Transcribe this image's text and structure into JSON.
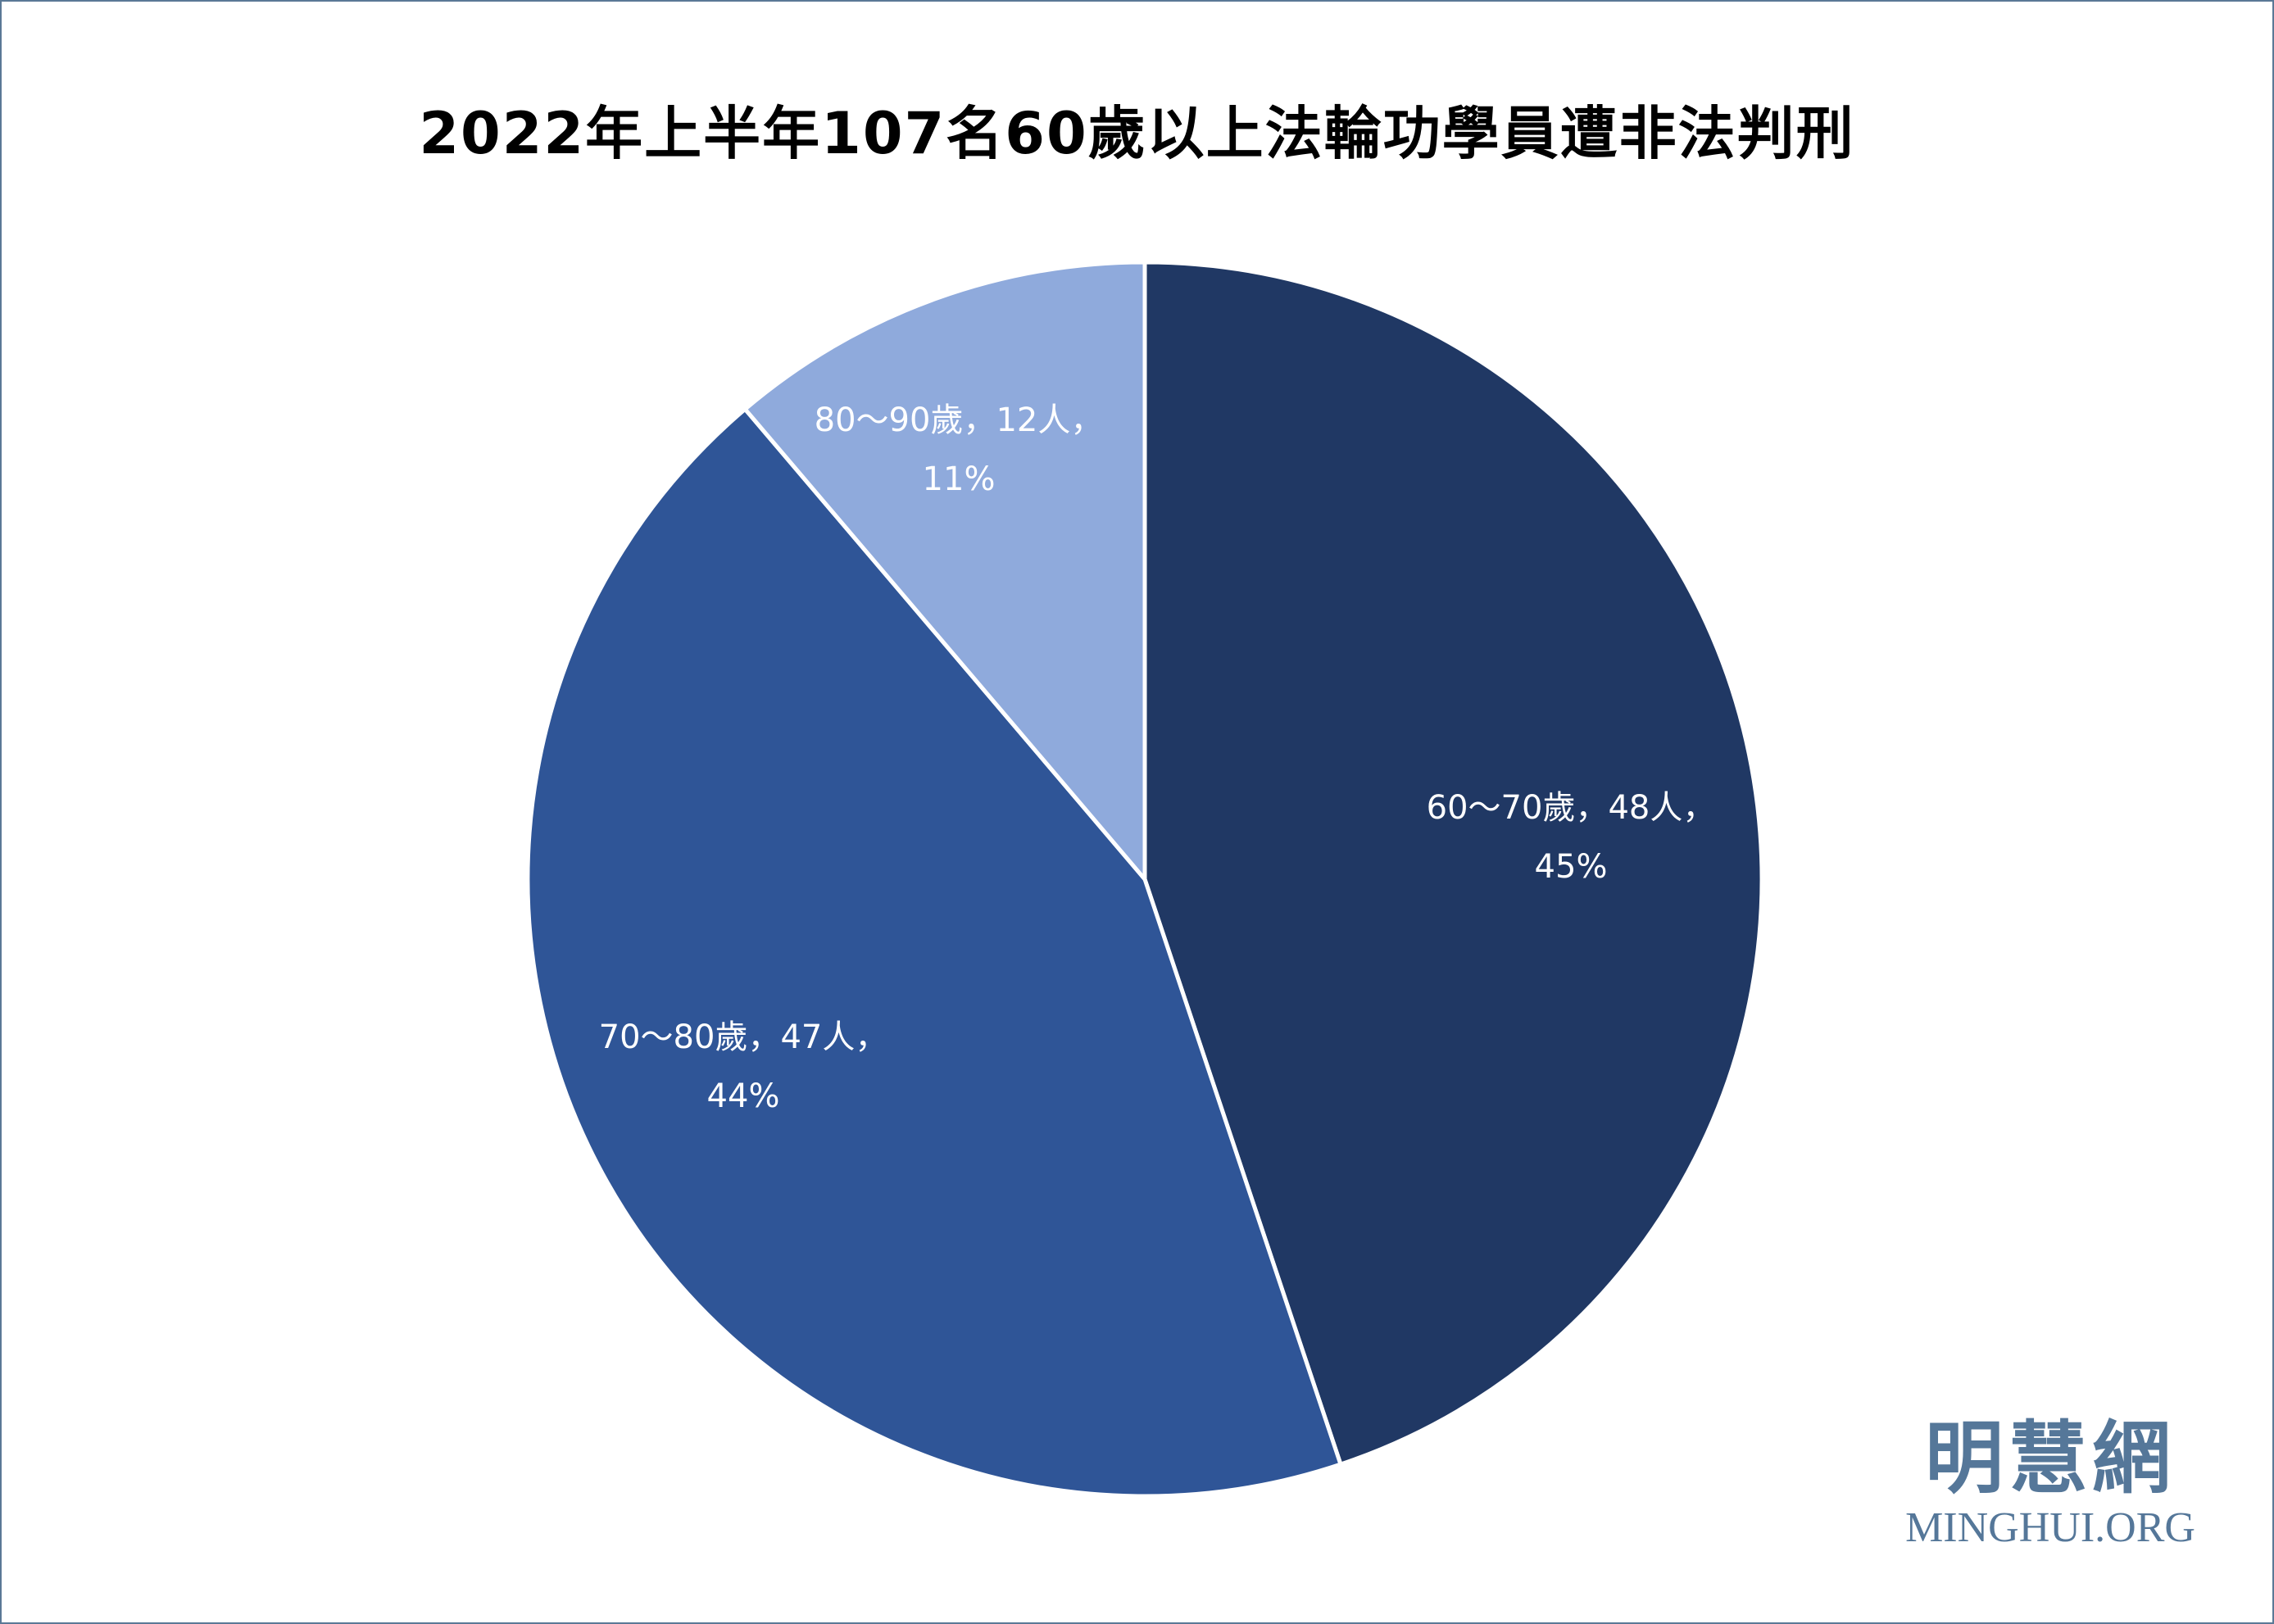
{
  "chart_data": {
    "type": "pie",
    "title": "2022年上半年107名60歲以上法輪功學員遭非法判刑",
    "slices": [
      {
        "label": "60～70歲",
        "count": 48,
        "percent": 45,
        "text1": "60～70歲，48人，",
        "text2": "45%",
        "color": "#203864"
      },
      {
        "label": "70～80歲",
        "count": 47,
        "percent": 44,
        "text1": "70～80歲，47人，",
        "text2": "44%",
        "color": "#2F5597"
      },
      {
        "label": "80～90歲",
        "count": 12,
        "percent": 11,
        "text1": "80～90歲，12人，",
        "text2": "11%",
        "color": "#8FAADC"
      }
    ],
    "start": "top",
    "direction": "clockwise"
  },
  "watermark": {
    "chinese": "明慧網",
    "english": "MINGHUI.ORG"
  }
}
